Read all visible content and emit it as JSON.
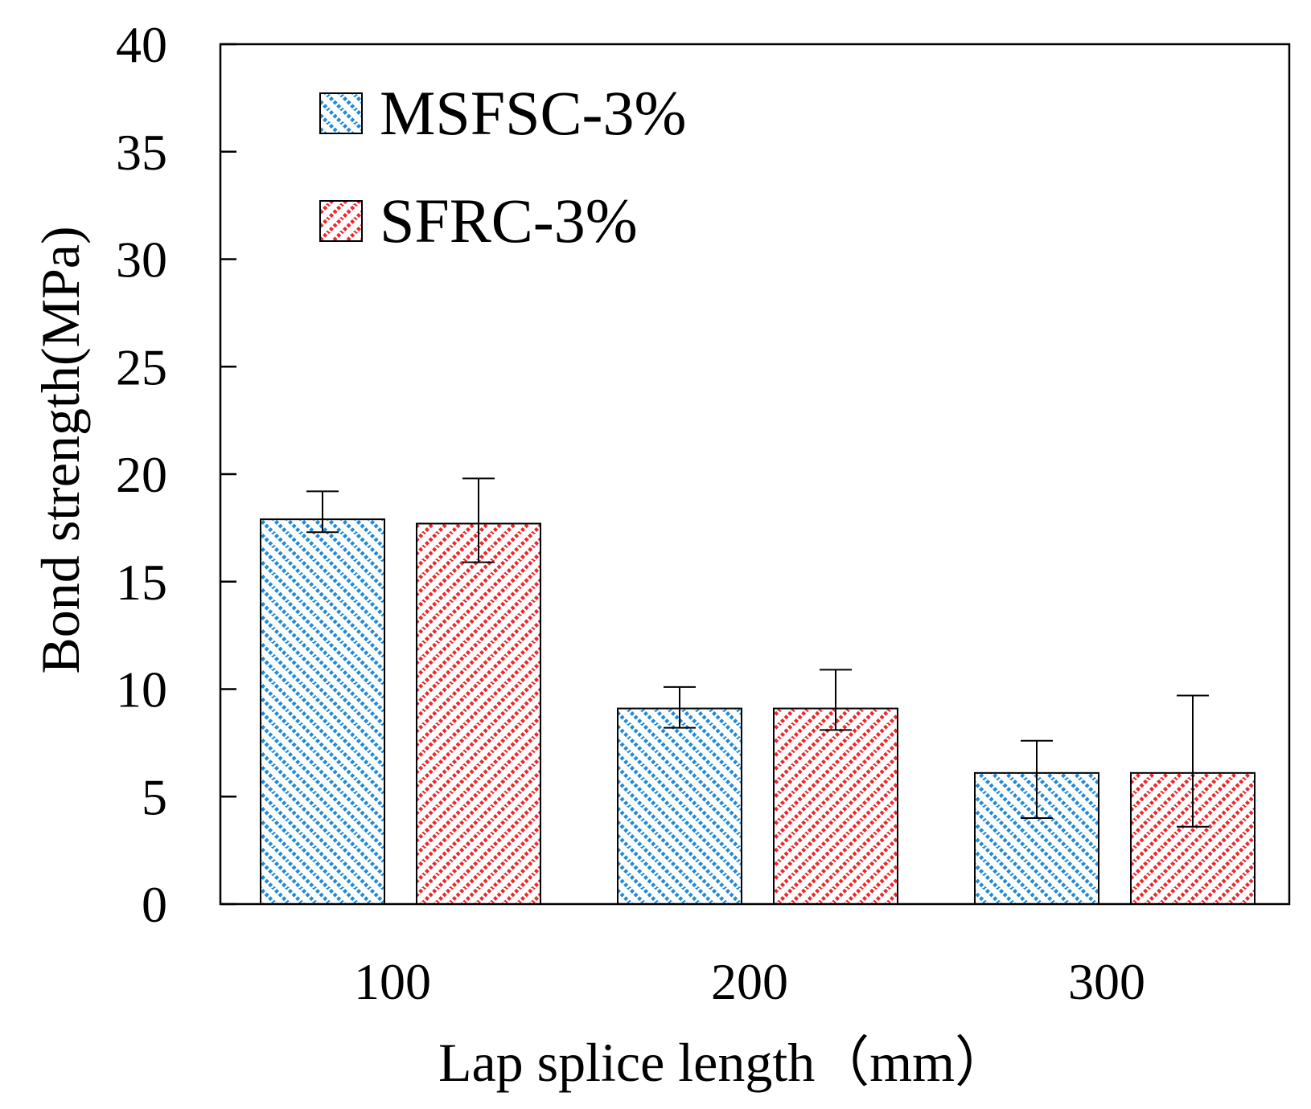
{
  "chart_data": {
    "type": "bar",
    "title": "",
    "xlabel": "Lap splice length（mm）",
    "ylabel": "Bond strength(MPa)",
    "ylim": [
      0,
      40
    ],
    "yticks": [
      0,
      5,
      10,
      15,
      20,
      25,
      30,
      35,
      40
    ],
    "categories": [
      "100",
      "200",
      "300"
    ],
    "grid": false,
    "legend_position": "top-left",
    "series": [
      {
        "name": "MSFSC-3%",
        "color": "#1f8ad6",
        "pattern": "diagonal-hatch-down",
        "values": [
          17.9,
          9.1,
          6.1
        ],
        "err_low": [
          17.3,
          8.2,
          4.0
        ],
        "err_high": [
          19.2,
          10.1,
          7.6
        ]
      },
      {
        "name": "SFRC-3%",
        "color": "#f0262a",
        "pattern": "diagonal-hatch-up",
        "values": [
          17.7,
          9.1,
          6.1
        ],
        "err_low": [
          15.9,
          8.1,
          3.6
        ],
        "err_high": [
          19.8,
          10.9,
          9.7
        ]
      }
    ]
  }
}
